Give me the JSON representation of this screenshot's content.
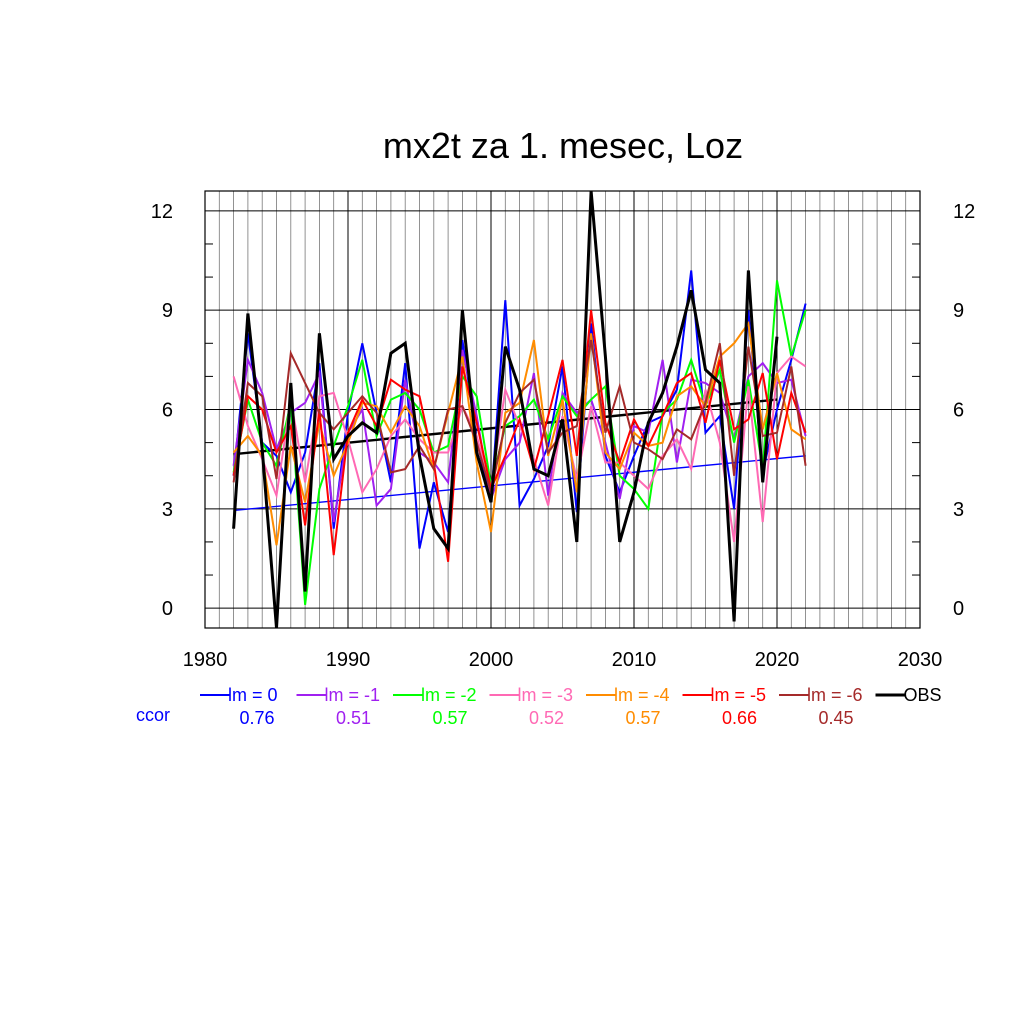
{
  "chart_data": {
    "type": "line",
    "title": "mx2t za 1. mesec, Loz",
    "xlim": [
      1980,
      2030
    ],
    "ylim": [
      -0.6,
      12.6
    ],
    "x_ticks": [
      1980,
      1990,
      2000,
      2010,
      2020,
      2030
    ],
    "y_ticks": [
      0,
      3,
      6,
      9,
      12
    ],
    "grid": true,
    "x": [
      1982,
      1983,
      1984,
      1985,
      1986,
      1987,
      1988,
      1989,
      1990,
      1991,
      1992,
      1993,
      1994,
      1995,
      1996,
      1997,
      1998,
      1999,
      2000,
      2001,
      2002,
      2003,
      2004,
      2005,
      2006,
      2007,
      2008,
      2009,
      2010,
      2011,
      2012,
      2013,
      2014,
      2015,
      2016,
      2017,
      2018,
      2019,
      2020,
      2021,
      2022
    ],
    "series": [
      {
        "name": "lm = 0",
        "color": "#0000ff",
        "values": [
          4.0,
          8.3,
          5.0,
          4.6,
          3.5,
          4.7,
          7.4,
          2.4,
          5.9,
          8.0,
          5.9,
          3.8,
          7.4,
          1.8,
          3.8,
          2.3,
          8.1,
          5.1,
          3.2,
          9.3,
          3.1,
          3.9,
          4.9,
          7.3,
          2.9,
          8.6,
          4.6,
          3.5,
          4.6,
          5.6,
          5.8,
          6.6,
          10.2,
          5.3,
          5.8,
          3.0,
          9.0,
          4.1,
          6.0,
          7.5,
          9.2
        ]
      },
      {
        "name": "lm = -1",
        "color": "#a020f0",
        "values": [
          4.3,
          7.5,
          6.5,
          4.8,
          5.9,
          6.2,
          7.1,
          2.6,
          5.3,
          6.0,
          3.1,
          3.6,
          6.9,
          4.7,
          4.4,
          3.8,
          7.8,
          5.8,
          3.3,
          4.5,
          5.0,
          7.1,
          3.4,
          6.5,
          5.9,
          6.3,
          5.0,
          3.3,
          5.5,
          5.3,
          7.5,
          4.4,
          6.9,
          6.8,
          6.5,
          5.1,
          7.0,
          7.4,
          6.8,
          6.9,
          5.2
        ]
      },
      {
        "name": "lm = -2",
        "color": "#00ff00",
        "values": [
          4.1,
          6.3,
          5.0,
          4.3,
          6.2,
          0.1,
          3.6,
          4.9,
          6.1,
          7.5,
          5.2,
          6.3,
          6.5,
          6.0,
          4.7,
          4.9,
          7.0,
          6.4,
          3.7,
          5.5,
          5.8,
          6.3,
          5.1,
          6.4,
          5.8,
          6.3,
          6.7,
          4.0,
          3.6,
          3.0,
          5.9,
          6.3,
          7.5,
          6.1,
          7.2,
          5.0,
          6.9,
          4.2,
          9.9,
          7.6,
          9.0
        ]
      },
      {
        "name": "lm = -3",
        "color": "#ff69b4",
        "values": [
          7.0,
          5.5,
          4.5,
          3.4,
          6.3,
          3.8,
          6.4,
          6.5,
          5.1,
          3.5,
          4.2,
          5.2,
          5.7,
          5.1,
          4.7,
          4.7,
          6.1,
          5.2,
          3.6,
          6.6,
          5.5,
          4.5,
          3.1,
          5.8,
          3.9,
          6.1,
          4.4,
          4.4,
          4.0,
          3.6,
          4.6,
          5.1,
          4.2,
          6.6,
          5.0,
          2.0,
          6.7,
          2.6,
          7.1,
          7.6,
          7.3
        ]
      },
      {
        "name": "lm = -4",
        "color": "#ff8c00",
        "values": [
          4.7,
          5.2,
          4.6,
          1.9,
          4.9,
          3.2,
          5.6,
          4.0,
          5.0,
          6.2,
          6.1,
          5.3,
          6.1,
          5.5,
          4.2,
          5.9,
          7.6,
          4.4,
          2.3,
          5.9,
          6.2,
          8.1,
          4.6,
          6.3,
          3.5,
          8.3,
          4.7,
          4.2,
          5.3,
          4.9,
          5.0,
          6.4,
          6.7,
          6.1,
          7.6,
          8.0,
          8.6,
          5.4,
          7.1,
          5.4,
          5.1
        ]
      },
      {
        "name": "lm = -5",
        "color": "#ff0000",
        "values": [
          4.0,
          6.4,
          6.0,
          4.7,
          5.5,
          2.5,
          6.0,
          1.6,
          5.3,
          6.3,
          5.5,
          6.9,
          6.6,
          6.4,
          4.4,
          1.4,
          7.3,
          5.6,
          3.6,
          4.6,
          5.7,
          4.2,
          5.8,
          7.5,
          4.6,
          9.0,
          5.6,
          4.4,
          5.7,
          4.9,
          5.8,
          6.8,
          7.1,
          5.6,
          7.5,
          5.4,
          5.7,
          7.1,
          4.5,
          6.5,
          5.3
        ]
      },
      {
        "name": "lm = -6",
        "color": "#a52a2a",
        "values": [
          3.8,
          6.8,
          6.4,
          3.9,
          7.7,
          6.8,
          5.9,
          5.4,
          5.9,
          6.4,
          5.9,
          4.1,
          4.2,
          4.9,
          4.2,
          6.0,
          6.1,
          5.0,
          3.5,
          5.6,
          6.5,
          6.9,
          4.7,
          5.3,
          5.5,
          8.1,
          5.3,
          6.7,
          5.0,
          4.8,
          4.5,
          5.4,
          5.1,
          6.2,
          8.0,
          4.0,
          7.9,
          5.2,
          5.3,
          7.3,
          4.3
        ]
      },
      {
        "name": "OBS",
        "color": "#000000",
        "values": [
          2.4,
          8.9,
          4.8,
          -0.6,
          6.8,
          0.5,
          8.3,
          4.5,
          5.2,
          5.6,
          5.3,
          7.7,
          8.0,
          4.6,
          2.4,
          1.8,
          9.0,
          4.7,
          3.2,
          7.9,
          6.6,
          4.2,
          4.0,
          5.7,
          2.0,
          12.6,
          7.6,
          2.0,
          3.5,
          5.6,
          6.5,
          7.9,
          9.6,
          7.2,
          6.8,
          -0.4,
          10.2,
          3.8,
          8.2,
          null,
          null
        ]
      }
    ],
    "trend_lines": [
      {
        "name": "lm = 0 trend",
        "color": "#0000ff",
        "x": [
          1982,
          2022
        ],
        "y": [
          2.95,
          4.6
        ]
      },
      {
        "name": "OBS trend",
        "color": "#000000",
        "x": [
          1982,
          2020
        ],
        "y": [
          4.65,
          6.3
        ]
      }
    ],
    "legend": [
      {
        "label": "lm = 0",
        "color": "#0000ff",
        "ccor": "0.76"
      },
      {
        "label": "lm = -1",
        "color": "#a020f0",
        "ccor": "0.51"
      },
      {
        "label": "lm = -2",
        "color": "#00ff00",
        "ccor": "0.57"
      },
      {
        "label": "lm = -3",
        "color": "#ff69b4",
        "ccor": "0.52"
      },
      {
        "label": "lm = -4",
        "color": "#ff8c00",
        "ccor": "0.57"
      },
      {
        "label": "lm = -5",
        "color": "#ff0000",
        "ccor": "0.66"
      },
      {
        "label": "lm = -6",
        "color": "#a52a2a",
        "ccor": "0.45"
      },
      {
        "label": "OBS",
        "color": "#000000",
        "ccor": ""
      }
    ],
    "ccor_label": "ccor",
    "ccor_color": "#0000ff"
  }
}
